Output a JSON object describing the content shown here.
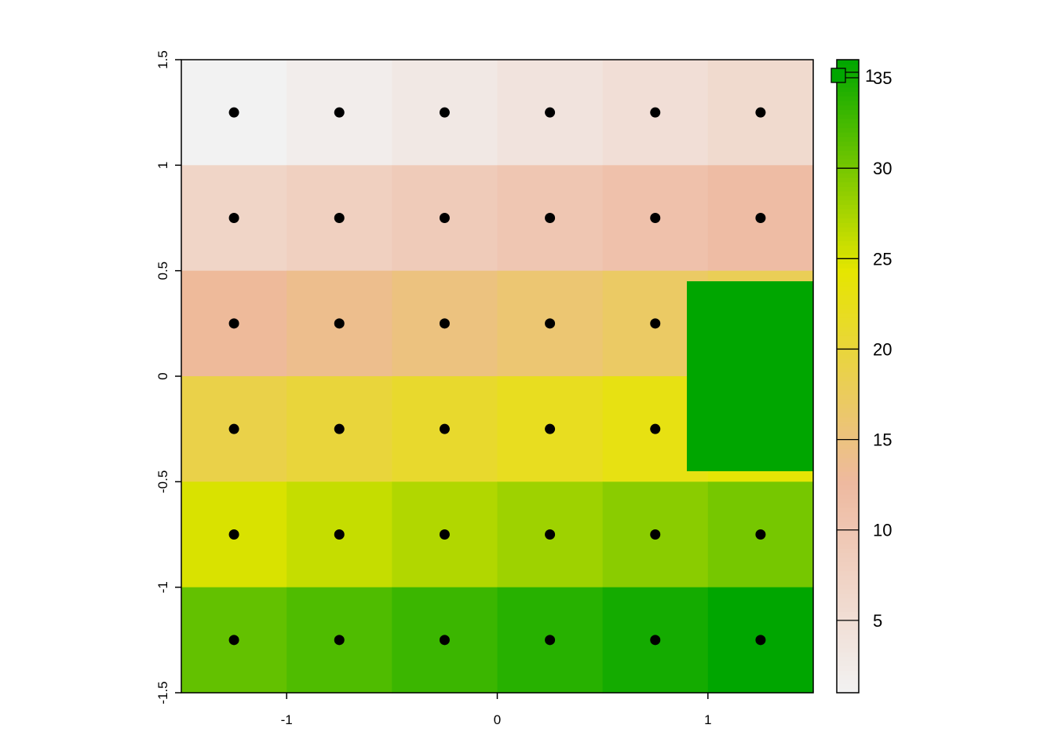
{
  "chart_data": {
    "type": "heatmap",
    "title": "",
    "xlabel": "",
    "ylabel": "",
    "xlim": [
      -1.5,
      1.5
    ],
    "ylim": [
      -1.5,
      1.5
    ],
    "x_ticks": [
      "-1",
      "0",
      "1"
    ],
    "x_tick_values": [
      -1,
      0,
      1
    ],
    "y_ticks": [
      "-1.5",
      "-1",
      "-0.5",
      "0",
      "0.5",
      "1",
      "1.5"
    ],
    "y_tick_values": [
      -1.5,
      -1,
      -0.5,
      0,
      0.5,
      1,
      1.5
    ],
    "cell_centers_x": [
      -1.25,
      -0.75,
      -0.25,
      0.25,
      0.75,
      1.25
    ],
    "cell_centers_y": [
      1.25,
      0.75,
      0.25,
      -0.25,
      -0.75,
      -1.25
    ],
    "grid_values": [
      [
        1,
        2,
        3,
        4,
        5,
        6
      ],
      [
        7,
        8,
        9,
        10,
        11,
        12
      ],
      [
        13,
        14,
        15,
        16,
        17,
        18
      ],
      [
        19,
        20,
        21,
        22,
        23,
        24
      ],
      [
        25,
        26,
        27,
        28,
        29,
        30
      ],
      [
        31,
        32,
        33,
        34,
        35,
        36
      ]
    ],
    "points": [
      [
        -1.25,
        1.25
      ],
      [
        -0.75,
        1.25
      ],
      [
        -0.25,
        1.25
      ],
      [
        0.25,
        1.25
      ],
      [
        0.75,
        1.25
      ],
      [
        1.25,
        1.25
      ],
      [
        -1.25,
        0.75
      ],
      [
        -0.75,
        0.75
      ],
      [
        -0.25,
        0.75
      ],
      [
        0.25,
        0.75
      ],
      [
        0.75,
        0.75
      ],
      [
        1.25,
        0.75
      ],
      [
        -1.25,
        0.25
      ],
      [
        -0.75,
        0.25
      ],
      [
        -0.25,
        0.25
      ],
      [
        0.25,
        0.25
      ],
      [
        0.75,
        0.25
      ],
      [
        -1.25,
        -0.25
      ],
      [
        -0.75,
        -0.25
      ],
      [
        -0.25,
        -0.25
      ],
      [
        0.25,
        -0.25
      ],
      [
        0.75,
        -0.25
      ],
      [
        -1.25,
        -0.75
      ],
      [
        -0.75,
        -0.75
      ],
      [
        -0.25,
        -0.75
      ],
      [
        0.25,
        -0.75
      ],
      [
        0.75,
        -0.75
      ],
      [
        1.25,
        -0.75
      ],
      [
        -1.25,
        -1.25
      ],
      [
        -0.75,
        -1.25
      ],
      [
        -0.25,
        -1.25
      ],
      [
        0.25,
        -1.25
      ],
      [
        0.75,
        -1.25
      ],
      [
        1.25,
        -1.25
      ]
    ],
    "overlay_rect": {
      "x0": 0.9,
      "x1": 1.5,
      "y0": -0.45,
      "y1": 0.45,
      "color": "#00A600"
    },
    "legend": {
      "min": 1,
      "max": 36,
      "ticks": [
        "5",
        "10",
        "15",
        "20",
        "25",
        "30",
        "35"
      ],
      "tick_values": [
        5,
        10,
        15,
        20,
        25,
        30,
        35
      ],
      "stray_label": "1",
      "placement": "right"
    },
    "palette": [
      "#F2F2F2",
      "#EEB99F",
      "#E6E600",
      "#00A600"
    ],
    "palette_name": "terrain.colors (reversed)",
    "point_color": "#000000"
  }
}
